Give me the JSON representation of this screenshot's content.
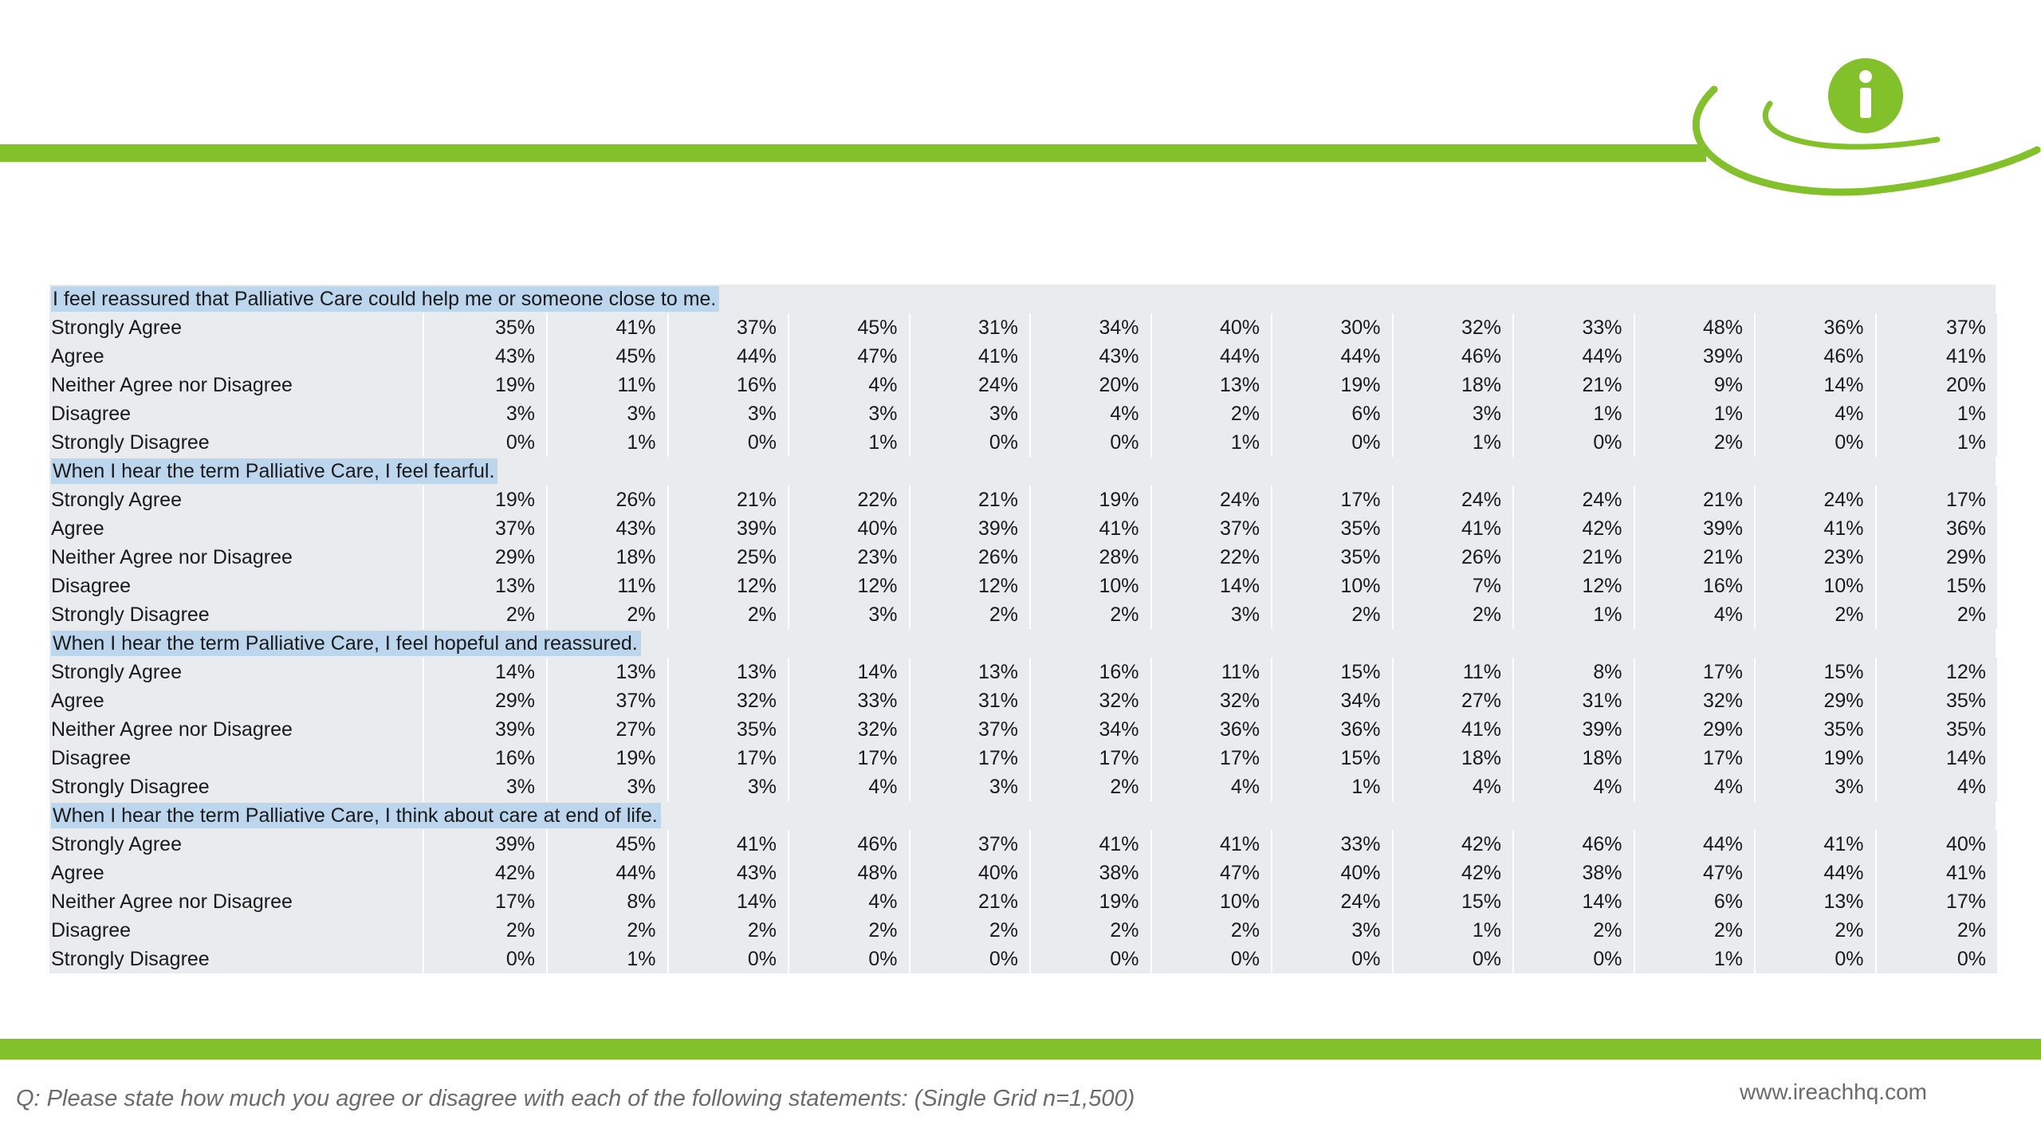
{
  "brand": {
    "accent_color": "#82c12a",
    "logo_icon": "info-icon",
    "website": "www.ireachhq.com"
  },
  "footnote": "Q: Please state how much you agree or disagree with each of the following statements: (Single Grid n=1,500)",
  "sections": [
    {
      "title": "I feel reassured that Palliative Care could help me or someone close to me.",
      "rows": [
        {
          "label": "Strongly Agree",
          "values": [
            "35%",
            "41%",
            "37%",
            "45%",
            "31%",
            "34%",
            "40%",
            "30%",
            "32%",
            "33%",
            "48%",
            "36%",
            "37%"
          ]
        },
        {
          "label": "Agree",
          "values": [
            "43%",
            "45%",
            "44%",
            "47%",
            "41%",
            "43%",
            "44%",
            "44%",
            "46%",
            "44%",
            "39%",
            "46%",
            "41%"
          ]
        },
        {
          "label": "Neither Agree nor Disagree",
          "values": [
            "19%",
            "11%",
            "16%",
            "4%",
            "24%",
            "20%",
            "13%",
            "19%",
            "18%",
            "21%",
            "9%",
            "14%",
            "20%"
          ]
        },
        {
          "label": "Disagree",
          "values": [
            "3%",
            "3%",
            "3%",
            "3%",
            "3%",
            "4%",
            "2%",
            "6%",
            "3%",
            "1%",
            "1%",
            "4%",
            "1%"
          ]
        },
        {
          "label": "Strongly Disagree",
          "values": [
            "0%",
            "1%",
            "0%",
            "1%",
            "0%",
            "0%",
            "1%",
            "0%",
            "1%",
            "0%",
            "2%",
            "0%",
            "1%"
          ]
        }
      ]
    },
    {
      "title": "When I hear the term Palliative Care, I feel fearful.",
      "rows": [
        {
          "label": "Strongly Agree",
          "values": [
            "19%",
            "26%",
            "21%",
            "22%",
            "21%",
            "19%",
            "24%",
            "17%",
            "24%",
            "24%",
            "21%",
            "24%",
            "17%"
          ]
        },
        {
          "label": "Agree",
          "values": [
            "37%",
            "43%",
            "39%",
            "40%",
            "39%",
            "41%",
            "37%",
            "35%",
            "41%",
            "42%",
            "39%",
            "41%",
            "36%"
          ]
        },
        {
          "label": "Neither Agree nor Disagree",
          "values": [
            "29%",
            "18%",
            "25%",
            "23%",
            "26%",
            "28%",
            "22%",
            "35%",
            "26%",
            "21%",
            "21%",
            "23%",
            "29%"
          ]
        },
        {
          "label": "Disagree",
          "values": [
            "13%",
            "11%",
            "12%",
            "12%",
            "12%",
            "10%",
            "14%",
            "10%",
            "7%",
            "12%",
            "16%",
            "10%",
            "15%"
          ]
        },
        {
          "label": "Strongly Disagree",
          "values": [
            "2%",
            "2%",
            "2%",
            "3%",
            "2%",
            "2%",
            "3%",
            "2%",
            "2%",
            "1%",
            "4%",
            "2%",
            "2%"
          ]
        }
      ]
    },
    {
      "title": "When I hear the term Palliative Care, I feel hopeful and reassured.",
      "rows": [
        {
          "label": "Strongly Agree",
          "values": [
            "14%",
            "13%",
            "13%",
            "14%",
            "13%",
            "16%",
            "11%",
            "15%",
            "11%",
            "8%",
            "17%",
            "15%",
            "12%"
          ]
        },
        {
          "label": "Agree",
          "values": [
            "29%",
            "37%",
            "32%",
            "33%",
            "31%",
            "32%",
            "32%",
            "34%",
            "27%",
            "31%",
            "32%",
            "29%",
            "35%"
          ]
        },
        {
          "label": "Neither Agree nor Disagree",
          "values": [
            "39%",
            "27%",
            "35%",
            "32%",
            "37%",
            "34%",
            "36%",
            "36%",
            "41%",
            "39%",
            "29%",
            "35%",
            "35%"
          ]
        },
        {
          "label": "Disagree",
          "values": [
            "16%",
            "19%",
            "17%",
            "17%",
            "17%",
            "17%",
            "17%",
            "15%",
            "18%",
            "18%",
            "17%",
            "19%",
            "14%"
          ]
        },
        {
          "label": "Strongly Disagree",
          "values": [
            "3%",
            "3%",
            "3%",
            "4%",
            "3%",
            "2%",
            "4%",
            "1%",
            "4%",
            "4%",
            "4%",
            "3%",
            "4%"
          ]
        }
      ]
    },
    {
      "title": "When I hear the term Palliative Care, I think about care at end of life.",
      "rows": [
        {
          "label": "Strongly Agree",
          "values": [
            "39%",
            "45%",
            "41%",
            "46%",
            "37%",
            "41%",
            "41%",
            "33%",
            "42%",
            "46%",
            "44%",
            "41%",
            "40%"
          ]
        },
        {
          "label": "Agree",
          "values": [
            "42%",
            "44%",
            "43%",
            "48%",
            "40%",
            "38%",
            "47%",
            "40%",
            "42%",
            "38%",
            "47%",
            "44%",
            "41%"
          ]
        },
        {
          "label": "Neither Agree nor Disagree",
          "values": [
            "17%",
            "8%",
            "14%",
            "4%",
            "21%",
            "19%",
            "10%",
            "24%",
            "15%",
            "14%",
            "6%",
            "13%",
            "17%"
          ]
        },
        {
          "label": "Disagree",
          "values": [
            "2%",
            "2%",
            "2%",
            "2%",
            "2%",
            "2%",
            "2%",
            "3%",
            "1%",
            "2%",
            "2%",
            "2%",
            "2%"
          ]
        },
        {
          "label": "Strongly Disagree",
          "values": [
            "0%",
            "1%",
            "0%",
            "0%",
            "0%",
            "0%",
            "0%",
            "0%",
            "0%",
            "0%",
            "1%",
            "0%",
            "0%"
          ]
        }
      ]
    }
  ]
}
